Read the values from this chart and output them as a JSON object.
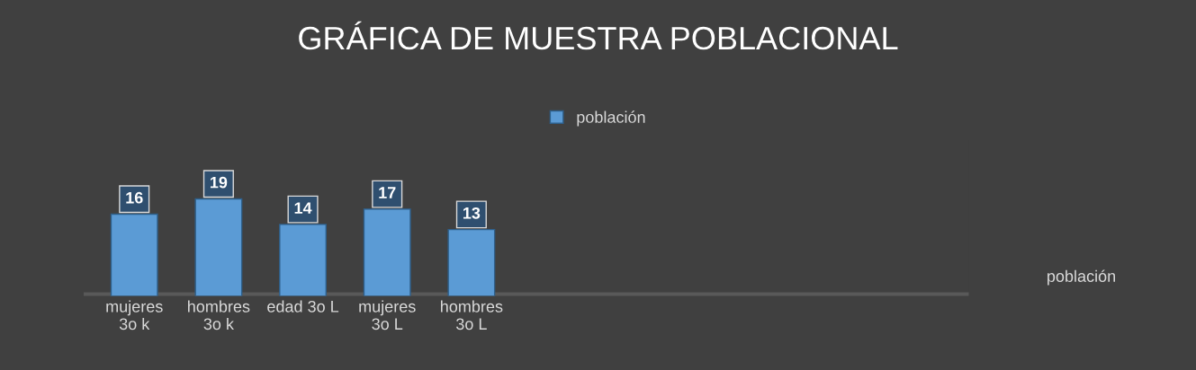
{
  "chart_data": {
    "type": "bar",
    "title": "GRÁFICA DE MUESTRA POBLACIONAL",
    "categories": [
      "mujeres\n3o k",
      "hombres\n3o k",
      "edad 3o L",
      "mujeres\n3o L",
      "hombres\n3o L"
    ],
    "series": [
      {
        "name": "población",
        "color": "#5b9bd5",
        "values": [
          16,
          19,
          14,
          17,
          13
        ]
      }
    ],
    "data_labels": true,
    "legend": "top",
    "grid": false,
    "annotations": [
      "población"
    ]
  }
}
